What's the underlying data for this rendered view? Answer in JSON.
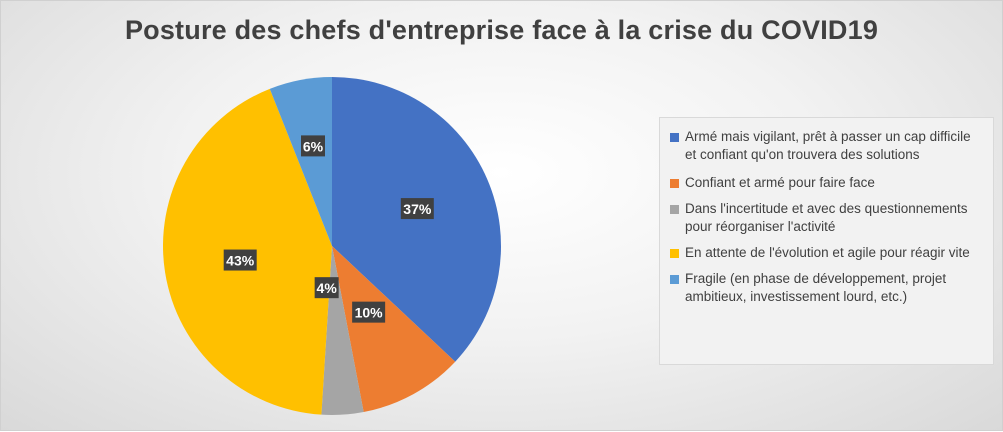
{
  "chart_data": {
    "type": "pie",
    "title": "Posture des chefs d'entreprise face à la crise du COVID19",
    "legend_position": "right",
    "slices": [
      {
        "label": "Armé mais vigilant, prêt à passer un cap difficile et confiant qu'on trouvera des solutions",
        "value": 37,
        "value_label": "37%",
        "color": "#4472c4"
      },
      {
        "label": "Confiant et armé pour faire face",
        "value": 10,
        "value_label": "10%",
        "color": "#ed7d31"
      },
      {
        "label": "Dans l'incertitude et avec des questionnements pour réorganiser l'activité",
        "value": 4,
        "value_label": "4%",
        "color": "#a5a5a5"
      },
      {
        "label": "En attente de l'évolution et agile pour réagir vite",
        "value": 43,
        "value_label": "43%",
        "color": "#ffc000"
      },
      {
        "label": "Fragile (en phase de développement, projet ambitieux, investissement lourd, etc.)",
        "value": 6,
        "value_label": "6%",
        "color": "#5b9bd5"
      }
    ]
  }
}
